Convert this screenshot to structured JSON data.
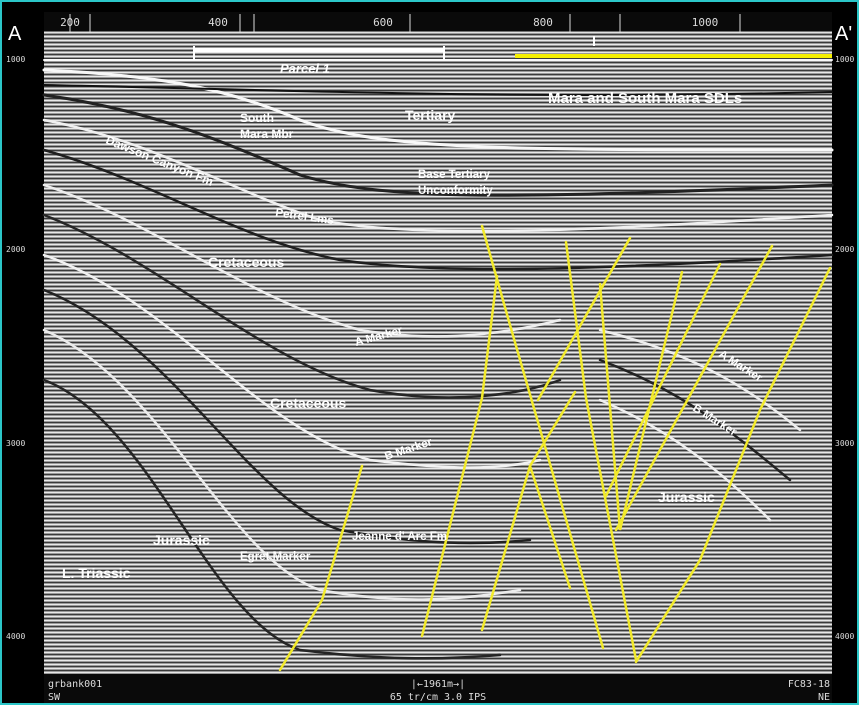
{
  "figure": {
    "corner_left": "A",
    "corner_right": "A'",
    "top_ticks": [
      "200",
      "400",
      "600",
      "800",
      "1000"
    ],
    "left_ticks": [
      "1000",
      "2000",
      "3000",
      "4000"
    ],
    "right_ticks": [
      "1000",
      "2000",
      "3000",
      "4000"
    ],
    "footer_left_1": "grbank001",
    "footer_left_2": "SW",
    "footer_center_1": "|←1961m→|",
    "footer_center_2": "65 tr/cm 3.0 IPS",
    "footer_right_1": "FC83-18",
    "footer_right_2": "NE"
  },
  "labels": {
    "parcel": "Parcel 1",
    "sdl": "Mara and South Mara SDLs",
    "tertiary": "Tertiary",
    "south_mara_1": "South",
    "south_mara_2": "Mara Mbr",
    "dawson": "Dawson Canyon Fm",
    "base_tertiary_1": "Base Tertiary",
    "base_tertiary_2": "Unconformity",
    "petrel": "Petrel Lms",
    "cretaceous_upper": "Cretaceous",
    "a_marker_left": "A Marker",
    "cretaceous_lower": "Cretaceous",
    "b_marker_left": "B Marker",
    "a_marker_right": "A Marker",
    "b_marker_right": "B Marker",
    "jurassic_right": "Jurassic",
    "jeanne": "Jeanne d' Arc Fm",
    "jurassic_left": "Jurassic",
    "egret": "Egret Marker",
    "triassic": "L. Triassic"
  },
  "colors": {
    "fault": "#f2ea2a",
    "sdl_bar": "#f5f000",
    "parcel_bar": "#ffffff",
    "frame": "#2bc6c8"
  }
}
